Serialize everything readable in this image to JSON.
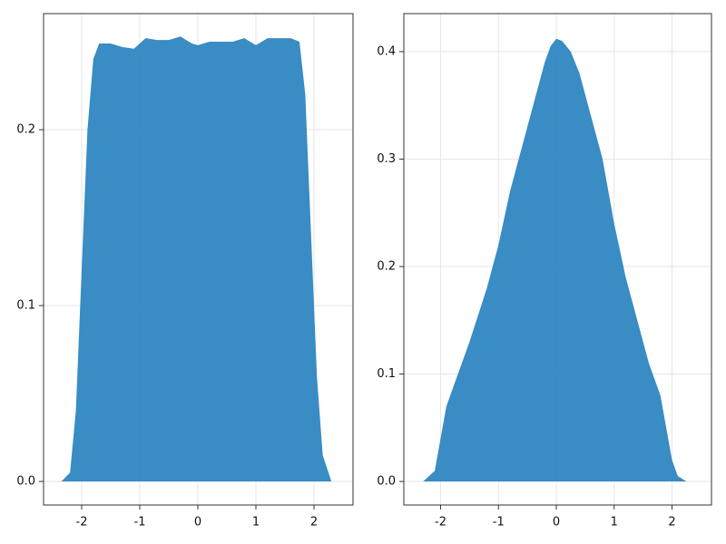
{
  "chart_data": [
    {
      "type": "area",
      "color": "#2e86c1",
      "grid": true,
      "x": [
        -2.35,
        -2.2,
        -2.1,
        -2.0,
        -1.9,
        -1.8,
        -1.7,
        -1.5,
        -1.3,
        -1.1,
        -0.9,
        -0.7,
        -0.5,
        -0.3,
        -0.1,
        0.0,
        0.2,
        0.4,
        0.6,
        0.8,
        1.0,
        1.2,
        1.4,
        1.6,
        1.75,
        1.85,
        1.95,
        2.05,
        2.15,
        2.3
      ],
      "values": [
        0,
        0.005,
        0.04,
        0.12,
        0.2,
        0.24,
        0.249,
        0.249,
        0.247,
        0.246,
        0.252,
        0.251,
        0.251,
        0.253,
        0.249,
        0.248,
        0.25,
        0.25,
        0.25,
        0.252,
        0.248,
        0.252,
        0.252,
        0.252,
        0.25,
        0.22,
        0.14,
        0.06,
        0.015,
        0
      ],
      "xlim": [
        -2.656,
        2.672
      ],
      "ylim": [
        -0.0134,
        0.266
      ],
      "xticks": [
        -2,
        -1,
        0,
        1,
        2
      ],
      "yticks": [
        {
          "value": 0,
          "label": "0.0"
        },
        0.1,
        0.2
      ]
    },
    {
      "type": "area",
      "color": "#2e86c1",
      "grid": true,
      "x": [
        -2.3,
        -2.1,
        -2.0,
        -1.9,
        -1.7,
        -1.5,
        -1.2,
        -1.0,
        -0.8,
        -0.6,
        -0.4,
        -0.2,
        -0.1,
        0.0,
        0.1,
        0.25,
        0.4,
        0.6,
        0.8,
        1.0,
        1.2,
        1.4,
        1.6,
        1.8,
        1.9,
        2.0,
        2.1,
        2.25
      ],
      "values": [
        0,
        0.01,
        0.04,
        0.07,
        0.1,
        0.13,
        0.18,
        0.22,
        0.27,
        0.31,
        0.35,
        0.39,
        0.405,
        0.412,
        0.41,
        0.4,
        0.38,
        0.34,
        0.3,
        0.24,
        0.19,
        0.15,
        0.11,
        0.08,
        0.05,
        0.02,
        0.005,
        0
      ],
      "xlim": [
        -2.635,
        2.682
      ],
      "ylim": [
        -0.0219,
        0.4354
      ],
      "xticks": [
        -2,
        -1,
        0,
        1,
        2
      ],
      "yticks": [
        {
          "value": 0,
          "label": "0.0"
        },
        0.1,
        0.2,
        0.3,
        0.4
      ]
    }
  ]
}
